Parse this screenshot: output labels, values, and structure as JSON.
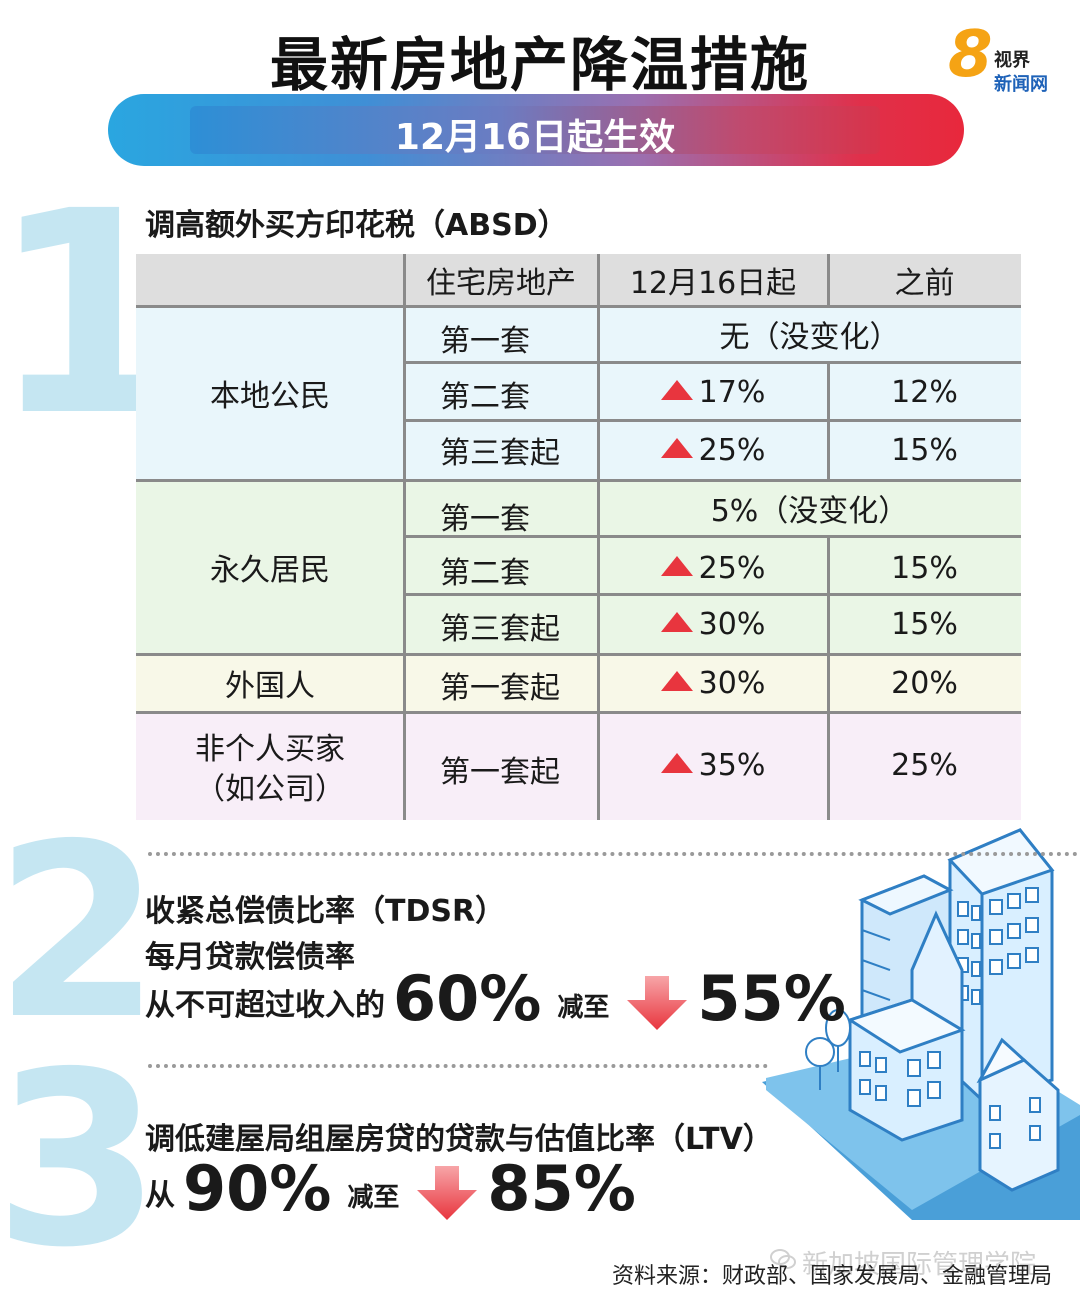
{
  "header": {
    "title": "最新房地产降温措施",
    "subtitle": "12月16日起生效"
  },
  "logo": {
    "mark": "8",
    "line1": "视界",
    "line2": "新闻网"
  },
  "section_numbers": [
    "1",
    "2",
    "3"
  ],
  "section1": {
    "title": "调高额外买方印花税（ABSD）",
    "table": {
      "headers": [
        "",
        "住宅房地产",
        "12月16日起",
        "之前"
      ],
      "groups": [
        {
          "name": "本地公民",
          "rows": [
            {
              "label": "第一套",
              "merged": "无（没变化）"
            },
            {
              "label": "第二套",
              "new": "17%",
              "old": "12%"
            },
            {
              "label": "第三套起",
              "new": "25%",
              "old": "15%"
            }
          ]
        },
        {
          "name": "永久居民",
          "rows": [
            {
              "label": "第一套",
              "merged": "5%（没变化）"
            },
            {
              "label": "第二套",
              "new": "25%",
              "old": "15%"
            },
            {
              "label": "第三套起",
              "new": "30%",
              "old": "15%"
            }
          ]
        },
        {
          "name": "外国人",
          "rows": [
            {
              "label": "第一套起",
              "new": "30%",
              "old": "20%"
            }
          ]
        },
        {
          "name_line1": "非个人买家",
          "name_line2": "（如公司）",
          "rows": [
            {
              "label": "第一套起",
              "new": "35%",
              "old": "25%"
            }
          ]
        }
      ]
    }
  },
  "section2": {
    "title": "收紧总偿债比率（TDSR）",
    "subtitle": "每月贷款偿债率",
    "prefix": "从不可超过收入的",
    "from": "60%",
    "reduce": "减至",
    "to": "55%"
  },
  "section3": {
    "title": "调低建屋局组屋房贷的贷款与估值比率（LTV）",
    "prefix": "从",
    "from": "90%",
    "reduce": "减至",
    "to": "85%"
  },
  "footer": {
    "source": "资料来源：财政部、国家发展局、金融管理局",
    "watermark": "新加坡国际管理学院"
  },
  "colors": {
    "banner_left": "#2aa6e0",
    "banner_right": "#e8283c",
    "arrow_red": "#e8353e",
    "numeral": "#c5e6f2",
    "citizen_bg": "#e9f6fb",
    "pr_bg": "#eaf6e6",
    "foreigner_bg": "#f8f8e8",
    "entity_bg": "#f8eef8"
  },
  "icons": [
    "up-arrow-icon",
    "down-arrow-icon",
    "city-buildings-illustration",
    "wechat-icon"
  ]
}
